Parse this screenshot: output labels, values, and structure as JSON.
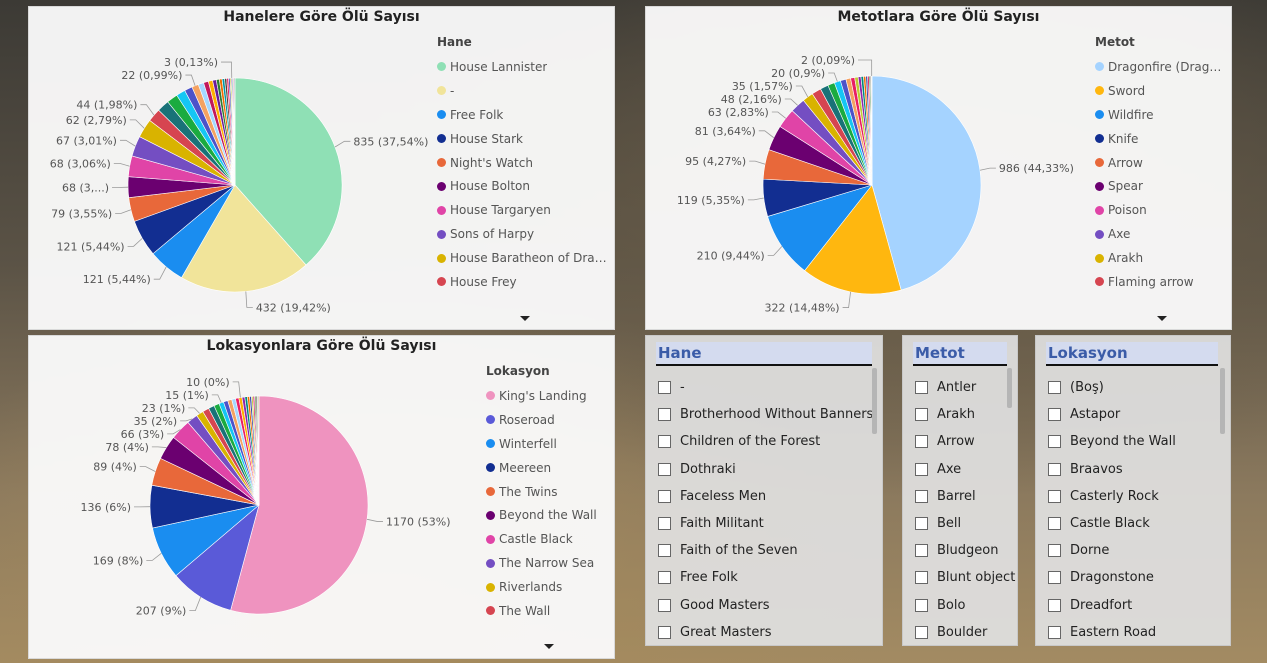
{
  "charts": {
    "hane": {
      "title": "Hanelere Göre Ölü Sayısı",
      "legend_title": "Hane",
      "legend": [
        "House Lannister",
        "-",
        "Free Folk",
        "House Stark",
        "Night's Watch",
        "House Bolton",
        "House Targaryen",
        "Sons of Harpy",
        "House Baratheon of Drag...",
        "House Frey"
      ]
    },
    "metot": {
      "title": "Metotlara Göre Ölü Sayısı",
      "legend_title": "Metot",
      "legend": [
        "Dragonfire (Dragon)",
        "Sword",
        "Wildfire",
        "Knife",
        "Arrow",
        "Spear",
        "Poison",
        "Axe",
        "Arakh",
        "Flaming arrow"
      ]
    },
    "lokasyon": {
      "title": "Lokasyonlara Göre Ölü Sayısı",
      "legend_title": "Lokasyon",
      "legend": [
        "King's Landing",
        "Roseroad",
        "Winterfell",
        "Meereen",
        "The Twins",
        "Beyond the Wall",
        "Castle Black",
        "The Narrow Sea",
        "Riverlands",
        "The Wall"
      ]
    }
  },
  "chart_data": [
    {
      "type": "pie",
      "title": "Hanelere Göre Ölü Sayısı",
      "legend_title": "Hane",
      "legend_placement": "right",
      "slices": [
        {
          "label": "House Lannister",
          "value": 835,
          "text": "835 (37,54%)",
          "color": "#8fe0b5"
        },
        {
          "label": "-",
          "value": 432,
          "text": "432 (19,42%)",
          "color": "#f1e49a"
        },
        {
          "label": "Free Folk",
          "value": 121,
          "text": "121 (5,44%)",
          "color": "#1a8df0"
        },
        {
          "label": "House Stark",
          "value": 121,
          "text": "121 (5,44%)",
          "color": "#122e91"
        },
        {
          "label": "Night's Watch",
          "value": 79,
          "text": "79 (3,55%)",
          "color": "#e8683a"
        },
        {
          "label": "House Bolton",
          "value": 68,
          "text": "68 (3,...)",
          "color": "#6b0070"
        },
        {
          "label": "House Targaryen",
          "value": 68,
          "text": "68 (3,06%)",
          "color": "#e044a7"
        },
        {
          "label": "Sons of Harpy",
          "value": 67,
          "text": "67 (3,01%)",
          "color": "#744ec2"
        },
        {
          "label": "House Baratheon of Drag...",
          "value": 62,
          "text": "62 (2,79%)",
          "color": "#d9b300"
        },
        {
          "label": "House Frey",
          "value": 44,
          "text": "44 (1,98%)",
          "color": "#d64550"
        },
        {
          "label": "",
          "value": 40,
          "text": "",
          "color": "#197278"
        },
        {
          "label": "",
          "value": 36,
          "text": "",
          "color": "#1aab40"
        },
        {
          "label": "",
          "value": 30,
          "text": "",
          "color": "#15c6f4"
        },
        {
          "label": "",
          "value": 26,
          "text": "",
          "color": "#4c52c9"
        },
        {
          "label": "",
          "value": 22,
          "text": "22 (0,99%)",
          "color": "#f4a261"
        },
        {
          "label": "",
          "value": 18,
          "text": "",
          "color": "#a5d8ff"
        },
        {
          "label": "",
          "value": 16,
          "text": "",
          "color": "#c2185b"
        },
        {
          "label": "",
          "value": 14,
          "text": "",
          "color": "#ffb000"
        },
        {
          "label": "",
          "value": 12,
          "text": "",
          "color": "#6a1b9a"
        },
        {
          "label": "",
          "value": 10,
          "text": "",
          "color": "#2e7d32"
        },
        {
          "label": "",
          "value": 9,
          "text": "",
          "color": "#ef6c00"
        },
        {
          "label": "",
          "value": 8,
          "text": "",
          "color": "#0097a7"
        },
        {
          "label": "",
          "value": 7,
          "text": "",
          "color": "#5d4037"
        },
        {
          "label": "",
          "value": 6,
          "text": "",
          "color": "#e91e63"
        },
        {
          "label": "",
          "value": 5,
          "text": "",
          "color": "#3949ab"
        },
        {
          "label": "",
          "value": 4,
          "text": "",
          "color": "#c0ca33"
        },
        {
          "label": "",
          "value": 3,
          "text": "3 (0,13%)",
          "color": "#8e24aa"
        },
        {
          "label": "",
          "value": 3,
          "text": "",
          "color": "#00897b"
        },
        {
          "label": "",
          "value": 3,
          "text": "",
          "color": "#d81b60"
        },
        {
          "label": "",
          "value": 3,
          "text": "",
          "color": "#546e7a"
        }
      ]
    },
    {
      "type": "pie",
      "title": "Metotlara Göre Ölü Sayısı",
      "legend_title": "Metot",
      "legend_placement": "right",
      "slices": [
        {
          "label": "Dragonfire (Dragon)",
          "value": 986,
          "text": "986 (44,33%)",
          "color": "#a5d3ff"
        },
        {
          "label": "Sword",
          "value": 322,
          "text": "322 (14,48%)",
          "color": "#ffb70f"
        },
        {
          "label": "Wildfire",
          "value": 210,
          "text": "210 (9,44%)",
          "color": "#1a8df0"
        },
        {
          "label": "Knife",
          "value": 119,
          "text": "119 (5,35%)",
          "color": "#122e91"
        },
        {
          "label": "Arrow",
          "value": 95,
          "text": "95 (4,27%)",
          "color": "#e8683a"
        },
        {
          "label": "Spear",
          "value": 81,
          "text": "81 (3,64%)",
          "color": "#6b0070"
        },
        {
          "label": "Poison",
          "value": 63,
          "text": "63 (2,83%)",
          "color": "#e044a7"
        },
        {
          "label": "Axe",
          "value": 48,
          "text": "48 (2,16%)",
          "color": "#744ec2"
        },
        {
          "label": "Arakh",
          "value": 35,
          "text": "35 (1,57%)",
          "color": "#d9b300"
        },
        {
          "label": "Flaming arrow",
          "value": 30,
          "text": "",
          "color": "#d64550"
        },
        {
          "label": "",
          "value": 26,
          "text": "",
          "color": "#197278"
        },
        {
          "label": "",
          "value": 22,
          "text": "",
          "color": "#1aab40"
        },
        {
          "label": "",
          "value": 20,
          "text": "20 (0,9%)",
          "color": "#15c6f4"
        },
        {
          "label": "",
          "value": 18,
          "text": "",
          "color": "#4c52c9"
        },
        {
          "label": "",
          "value": 15,
          "text": "",
          "color": "#f4a261"
        },
        {
          "label": "",
          "value": 13,
          "text": "",
          "color": "#e91e63"
        },
        {
          "label": "",
          "value": 11,
          "text": "",
          "color": "#c0ca33"
        },
        {
          "label": "",
          "value": 9,
          "text": "",
          "color": "#8e24aa"
        },
        {
          "label": "",
          "value": 8,
          "text": "",
          "color": "#00897b"
        },
        {
          "label": "",
          "value": 7,
          "text": "",
          "color": "#ef6c00"
        },
        {
          "label": "",
          "value": 6,
          "text": "",
          "color": "#3949ab"
        },
        {
          "label": "",
          "value": 5,
          "text": "",
          "color": "#d81b60"
        },
        {
          "label": "",
          "value": 4,
          "text": "",
          "color": "#2e7d32"
        },
        {
          "label": "",
          "value": 3,
          "text": "",
          "color": "#5d4037"
        },
        {
          "label": "",
          "value": 2,
          "text": "2 (0,09%)",
          "color": "#9e9d24"
        }
      ]
    },
    {
      "type": "pie",
      "title": "Lokasyonlara Göre Ölü Sayısı",
      "legend_title": "Lokasyon",
      "legend_placement": "right",
      "slices": [
        {
          "label": "King's Landing",
          "value": 1170,
          "text": "1170 (53%)",
          "color": "#ef93bf"
        },
        {
          "label": "Roseroad",
          "value": 207,
          "text": "207 (9%)",
          "color": "#5a5ad8"
        },
        {
          "label": "Winterfell",
          "value": 169,
          "text": "169 (8%)",
          "color": "#1a8df0"
        },
        {
          "label": "Meereen",
          "value": 136,
          "text": "136 (6%)",
          "color": "#122e91"
        },
        {
          "label": "The Twins",
          "value": 89,
          "text": "89 (4%)",
          "color": "#e8683a"
        },
        {
          "label": "Beyond the Wall",
          "value": 78,
          "text": "78 (4%)",
          "color": "#6b0070"
        },
        {
          "label": "Castle Black",
          "value": 66,
          "text": "66 (3%)",
          "color": "#e044a7"
        },
        {
          "label": "The Narrow Sea",
          "value": 35,
          "text": "35 (2%)",
          "color": "#744ec2"
        },
        {
          "label": "Riverlands",
          "value": 23,
          "text": "23 (1%)",
          "color": "#d9b300"
        },
        {
          "label": "The Wall",
          "value": 21,
          "text": "",
          "color": "#d64550"
        },
        {
          "label": "",
          "value": 19,
          "text": "",
          "color": "#197278"
        },
        {
          "label": "",
          "value": 17,
          "text": "",
          "color": "#1aab40"
        },
        {
          "label": "",
          "value": 15,
          "text": "15 (1%)",
          "color": "#15c6f4"
        },
        {
          "label": "",
          "value": 14,
          "text": "",
          "color": "#4c52c9"
        },
        {
          "label": "",
          "value": 13,
          "text": "",
          "color": "#f4a261"
        },
        {
          "label": "",
          "value": 12,
          "text": "",
          "color": "#a5d8ff"
        },
        {
          "label": "",
          "value": 11,
          "text": "",
          "color": "#e91e63"
        },
        {
          "label": "",
          "value": 10,
          "text": "10 (0%)",
          "color": "#ffb000"
        },
        {
          "label": "",
          "value": 9,
          "text": "",
          "color": "#8e24aa"
        },
        {
          "label": "",
          "value": 8,
          "text": "",
          "color": "#00897b"
        },
        {
          "label": "",
          "value": 7,
          "text": "",
          "color": "#ef6c00"
        },
        {
          "label": "",
          "value": 6,
          "text": "",
          "color": "#3949ab"
        },
        {
          "label": "",
          "value": 5,
          "text": "",
          "color": "#c0ca33"
        },
        {
          "label": "",
          "value": 5,
          "text": "",
          "color": "#d81b60"
        },
        {
          "label": "",
          "value": 4,
          "text": "",
          "color": "#2e7d32"
        },
        {
          "label": "",
          "value": 4,
          "text": "",
          "color": "#5d4037"
        },
        {
          "label": "",
          "value": 3,
          "text": "",
          "color": "#546e7a"
        },
        {
          "label": "",
          "value": 3,
          "text": "",
          "color": "#9e9d24"
        }
      ]
    }
  ],
  "slicers": {
    "hane": {
      "title": "Hane",
      "items": [
        "-",
        "Brotherhood Without Banners",
        "Children of the Forest",
        "Dothraki",
        "Faceless Men",
        "Faith Militant",
        "Faith of the Seven",
        "Free Folk",
        "Good Masters",
        "Great Masters"
      ]
    },
    "metot": {
      "title": "Metot",
      "items": [
        "Antler",
        "Arakh",
        "Arrow",
        "Axe",
        "Barrel",
        "Bell",
        "Bludgeon",
        "Blunt object",
        "Bolo",
        "Boulder"
      ]
    },
    "lokasyon": {
      "title": "Lokasyon",
      "items": [
        "(Boş)",
        "Astapor",
        "Beyond the Wall",
        "Braavos",
        "Casterly Rock",
        "Castle Black",
        "Dorne",
        "Dragonstone",
        "Dreadfort",
        "Eastern Road"
      ]
    }
  }
}
